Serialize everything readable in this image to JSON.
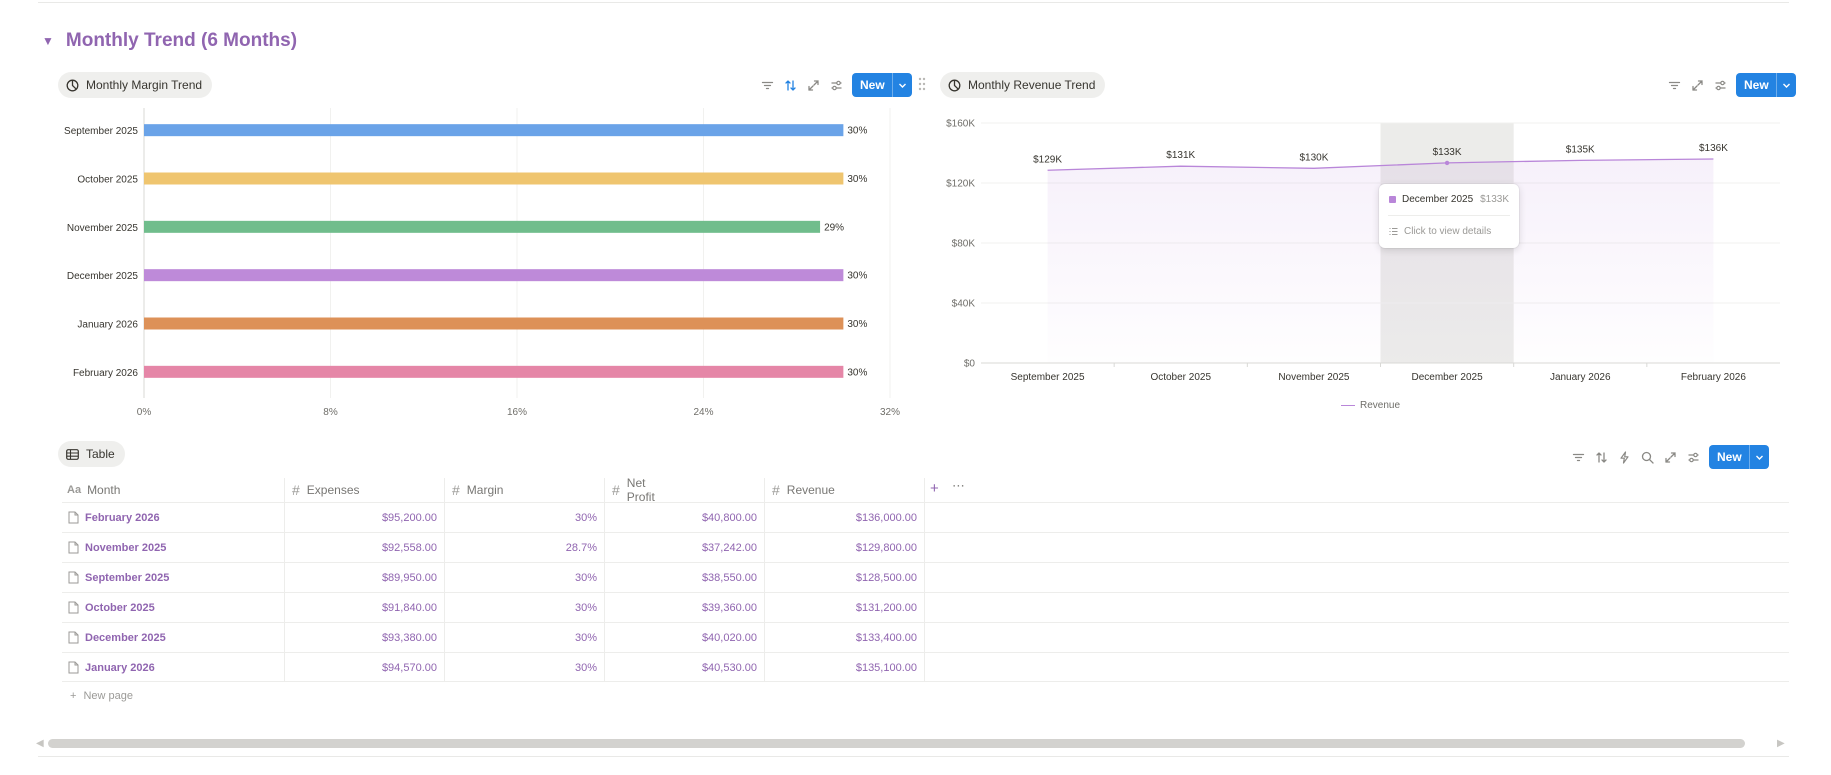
{
  "section": {
    "title": "Monthly Trend (6 Months)"
  },
  "margin_view": {
    "tab_label": "Monthly Margin Trend",
    "new_label": "New"
  },
  "revenue_view": {
    "tab_label": "Monthly Revenue Trend",
    "new_label": "New"
  },
  "table_view": {
    "tab_label": "Table",
    "new_label": "New"
  },
  "colors": {
    "accent": "#9065b0",
    "button": "#2383e2",
    "revenue_line": "#b986d9"
  },
  "chart_data": [
    {
      "type": "bar",
      "orientation": "horizontal",
      "categories": [
        "September 2025",
        "October 2025",
        "November 2025",
        "December 2025",
        "January 2026",
        "February 2026"
      ],
      "values": [
        30,
        30,
        29,
        30,
        30,
        30
      ],
      "value_labels": [
        "30%",
        "30%",
        "29%",
        "30%",
        "30%",
        "30%"
      ],
      "colors": [
        "#6aa3e8",
        "#efc56f",
        "#70bd8c",
        "#be8ad9",
        "#dd9158",
        "#e586a7"
      ],
      "xticks": [
        "0%",
        "8%",
        "16%",
        "24%",
        "32%"
      ],
      "xlim": [
        0,
        32
      ],
      "grid": true
    },
    {
      "type": "line",
      "x": [
        "September 2025",
        "October 2025",
        "November 2025",
        "December 2025",
        "January 2026",
        "February 2026"
      ],
      "series": [
        {
          "name": "Revenue",
          "values": [
            128500,
            131200,
            129800,
            133400,
            135100,
            136000
          ],
          "labels": [
            "$129K",
            "$131K",
            "$130K",
            "$133K",
            "$135K",
            "$136K"
          ]
        }
      ],
      "yticks": [
        "$0",
        "$40K",
        "$80K",
        "$120K",
        "$160K"
      ],
      "ylim": [
        0,
        160000
      ],
      "highlight_index": 3,
      "legend": "bottom",
      "grid": true
    }
  ],
  "tooltip": {
    "label": "December 2025",
    "value": "$133K",
    "action": "Click to view details"
  },
  "table": {
    "columns": [
      {
        "label": "Month",
        "type": "title"
      },
      {
        "label": "Expenses",
        "type": "number"
      },
      {
        "label": "Margin",
        "type": "number"
      },
      {
        "label": "Net Profit",
        "type": "number"
      },
      {
        "label": "Revenue",
        "type": "number"
      }
    ],
    "rows": [
      [
        "February 2026",
        "$95,200.00",
        "30%",
        "$40,800.00",
        "$136,000.00"
      ],
      [
        "November 2025",
        "$92,558.00",
        "28.7%",
        "$37,242.00",
        "$129,800.00"
      ],
      [
        "September 2025",
        "$89,950.00",
        "30%",
        "$38,550.00",
        "$128,500.00"
      ],
      [
        "October 2025",
        "$91,840.00",
        "30%",
        "$39,360.00",
        "$131,200.00"
      ],
      [
        "December 2025",
        "$93,380.00",
        "30%",
        "$40,020.00",
        "$133,400.00"
      ],
      [
        "January 2026",
        "$94,570.00",
        "30%",
        "$40,530.00",
        "$135,100.00"
      ]
    ],
    "new_page_label": "New page"
  }
}
